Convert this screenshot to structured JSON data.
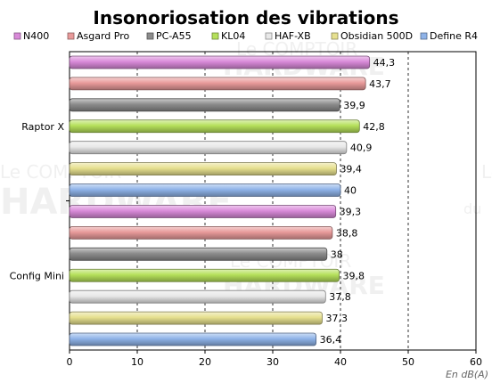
{
  "chart_data": {
    "type": "bar",
    "orientation": "horizontal",
    "title": "Insonoriosation des vibrations",
    "unit_label": "En dB(A)",
    "categories": [
      "Raptor X",
      "Config Mini"
    ],
    "series": [
      {
        "name": "N400",
        "color": "#d98ad9",
        "values": [
          44.3,
          39.3
        ],
        "labels": [
          "44,3",
          "39,3"
        ]
      },
      {
        "name": "Asgard Pro",
        "color": "#e89a9a",
        "values": [
          43.7,
          38.8
        ],
        "labels": [
          "43,7",
          "38,8"
        ]
      },
      {
        "name": "PC-A55",
        "color": "#8c8c8c",
        "values": [
          39.9,
          38.0
        ],
        "labels": [
          "39,9",
          "38"
        ]
      },
      {
        "name": "KL04",
        "color": "#b5e05a",
        "values": [
          42.8,
          39.8
        ],
        "labels": [
          "42,8",
          "39,8"
        ]
      },
      {
        "name": "HAF-XB",
        "color": "#e8e8e8",
        "values": [
          40.9,
          37.8
        ],
        "labels": [
          "40,9",
          "37,8"
        ]
      },
      {
        "name": "Obsidian 500D",
        "color": "#e6e08f",
        "values": [
          39.4,
          37.3
        ],
        "labels": [
          "39,4",
          "37,3"
        ]
      },
      {
        "name": "Define R4",
        "color": "#8fb3e8",
        "values": [
          40.0,
          36.4
        ],
        "labels": [
          "40",
          "36,4"
        ]
      }
    ],
    "x_axis": {
      "min": 0,
      "max": 60,
      "ticks": [
        "0",
        "10",
        "20",
        "30",
        "40",
        "50",
        "60"
      ]
    },
    "grid": "vertical dashed",
    "legend_position": "top"
  },
  "watermark": {
    "line1": "Le COMPTOIR",
    "line2": "HARDWARE",
    "line3": "du"
  }
}
